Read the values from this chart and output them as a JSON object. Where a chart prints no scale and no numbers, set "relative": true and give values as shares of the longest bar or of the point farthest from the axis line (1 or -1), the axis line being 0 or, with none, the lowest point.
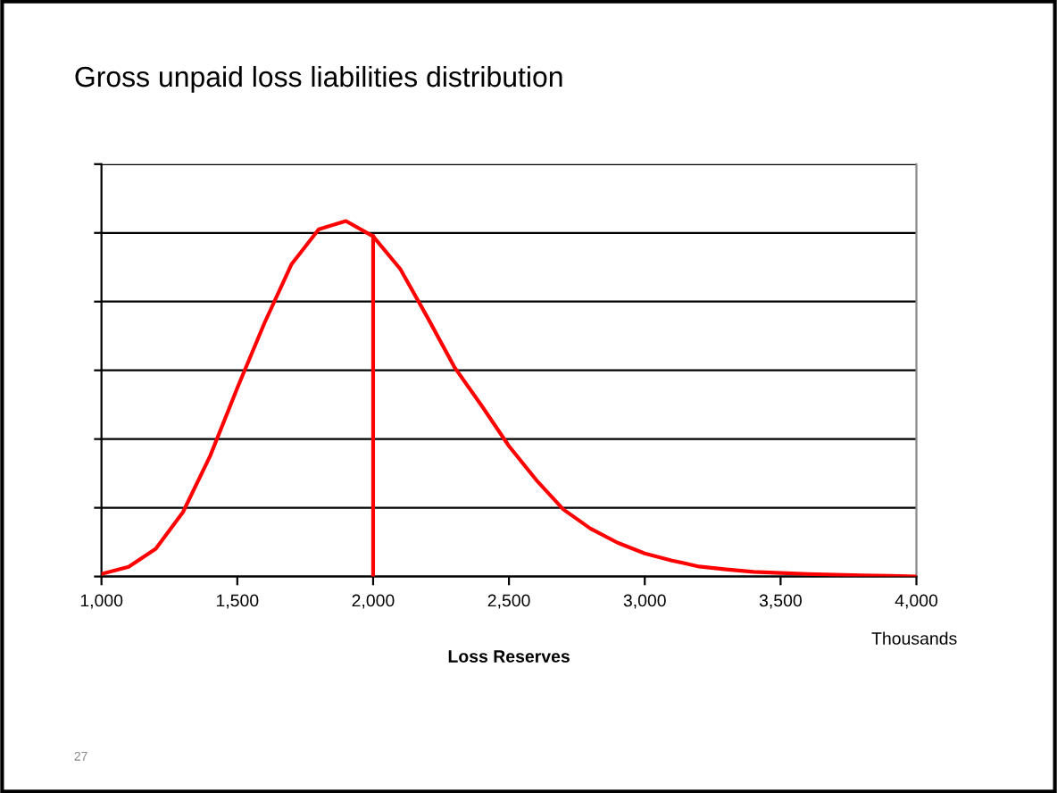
{
  "chart_data": {
    "type": "line",
    "title": "Gross unpaid loss liabilities distribution",
    "xlabel": "Loss Reserves",
    "annotations": [
      "Thousands",
      "27"
    ],
    "relative": true,
    "x": [
      1000,
      1100,
      1200,
      1300,
      1400,
      1500,
      1600,
      1700,
      1800,
      1900,
      2000,
      2100,
      2200,
      2300,
      2400,
      2500,
      2600,
      2700,
      2800,
      2900,
      3000,
      3100,
      3200,
      3300,
      3400,
      3500,
      3600,
      3700,
      3800,
      3900,
      4000
    ],
    "series": [
      {
        "color": "#ff0000",
        "values": [
          0.007,
          0.027,
          0.078,
          0.181,
          0.339,
          0.53,
          0.713,
          0.879,
          0.977,
          1,
          0.957,
          0.865,
          0.729,
          0.588,
          0.48,
          0.367,
          0.272,
          0.189,
          0.135,
          0.095,
          0.065,
          0.045,
          0.028,
          0.02,
          0.013,
          0.01,
          0.007,
          0.005,
          0.003,
          0.002,
          0
        ]
      }
    ],
    "xlim": [
      1000,
      4000
    ],
    "xticks": [
      {
        "value": 1000,
        "label": "1,000"
      },
      {
        "value": 1500,
        "label": "1,500"
      },
      {
        "value": 2000,
        "label": "2,000"
      },
      {
        "value": 2500,
        "label": "2,500"
      },
      {
        "value": 3000,
        "label": "3,000"
      },
      {
        "value": 3500,
        "label": "3,500"
      },
      {
        "value": 4000,
        "label": "4,000"
      }
    ],
    "ref_lines": [
      {
        "axis": "x",
        "value": 2000,
        "color": "#ff0000"
      }
    ],
    "grid": "y",
    "tick_labels": "x",
    "line_style": "solid",
    "marker": "none"
  }
}
